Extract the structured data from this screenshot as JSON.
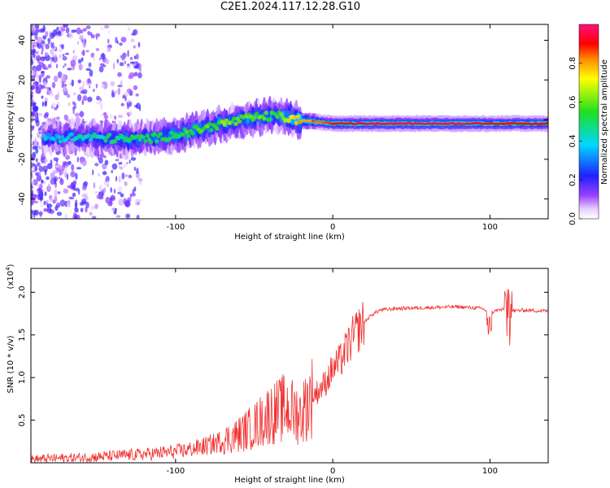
{
  "title": "C2E1.2024.117.12.28.G10",
  "colors": {
    "snr_line": "#f03030",
    "axis": "#000000"
  },
  "chart_data": [
    {
      "type": "heatmap",
      "xlabel": "Height of straight line (km)",
      "ylabel": "Frequency (Hz)",
      "xlim": [
        -192,
        137
      ],
      "ylim": [
        -50,
        48
      ],
      "x_ticks": [
        -100,
        0,
        100
      ],
      "y_ticks": [
        -40,
        -20,
        0,
        20,
        40
      ],
      "colorbar": {
        "label": "Normalized spectral amplitude",
        "range": [
          0,
          1
        ],
        "ticks": [
          "0.0",
          "0.2",
          "0.4",
          "0.6",
          "0.8"
        ]
      },
      "ridge": [
        {
          "x": -170,
          "y": -9,
          "amp": 0.35
        },
        {
          "x": -150,
          "y": -9,
          "amp": 0.4
        },
        {
          "x": -130,
          "y": -10,
          "amp": 0.45
        },
        {
          "x": -110,
          "y": -9,
          "amp": 0.45
        },
        {
          "x": -90,
          "y": -6,
          "amp": 0.5
        },
        {
          "x": -70,
          "y": -2,
          "amp": 0.55
        },
        {
          "x": -50,
          "y": 1,
          "amp": 0.55
        },
        {
          "x": -35,
          "y": 2,
          "amp": 0.5
        },
        {
          "x": -25,
          "y": 0,
          "amp": 0.7
        },
        {
          "x": 0,
          "y": -2,
          "amp": 0.9
        },
        {
          "x": 40,
          "y": -2,
          "amp": 0.95
        },
        {
          "x": 80,
          "y": -2,
          "amp": 0.95
        },
        {
          "x": 110,
          "y": -2,
          "amp": 0.9
        },
        {
          "x": 137,
          "y": -2,
          "amp": 0.9
        }
      ]
    },
    {
      "type": "line",
      "xlabel": "Height of straight line (km)",
      "ylabel": "SNR (10 * v/v)",
      "y_multiplier_label": "(x10",
      "y_multiplier_exp": "4",
      "xlim": [
        -192,
        137
      ],
      "ylim": [
        0,
        22800
      ],
      "x_ticks": [
        -100,
        0,
        100
      ],
      "y_tick_labels": [
        "0.5",
        "1.0",
        "1.5",
        "2.0"
      ],
      "y_tick_values": [
        5000,
        10000,
        15000,
        20000
      ],
      "series": [
        {
          "x": [
            -192,
            -180,
            -160,
            -140,
            -120,
            -100,
            -90,
            -80,
            -70,
            -60,
            -50,
            -45,
            -40,
            -35,
            -30,
            -25,
            -20,
            -15,
            -10,
            -5,
            0,
            5,
            10,
            15,
            20,
            25,
            30,
            40,
            60,
            80,
            95,
            100,
            105,
            110,
            115,
            120,
            137
          ],
          "y": [
            400,
            500,
            600,
            800,
            1000,
            1300,
            1600,
            2000,
            2600,
            3300,
            4300,
            5000,
            5800,
            6000,
            6500,
            6000,
            5600,
            7500,
            8300,
            9300,
            11000,
            12000,
            13800,
            15300,
            16500,
            17400,
            17900,
            18100,
            18200,
            18300,
            18100,
            17600,
            17900,
            18000,
            17800,
            17900,
            17800
          ]
        }
      ]
    }
  ]
}
